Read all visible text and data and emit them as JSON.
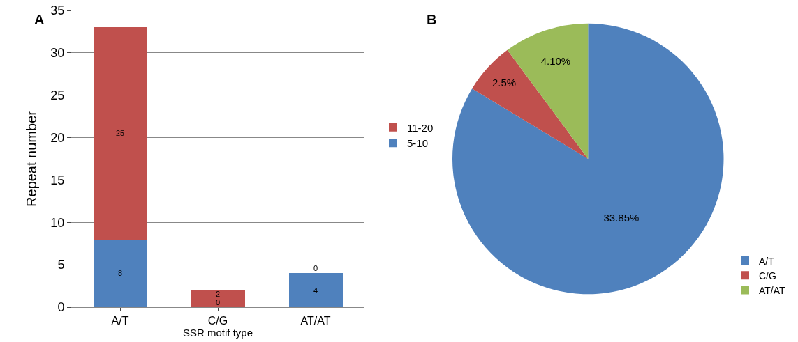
{
  "chart_data": [
    {
      "type": "bar",
      "title": "A",
      "categories": [
        "A/T",
        "C/G",
        "AT/AT"
      ],
      "stacked": true,
      "xlabel": "SSR motif type",
      "ylabel": "Repeat number",
      "ylim": [
        0,
        35
      ],
      "yticks": [
        0,
        5,
        10,
        15,
        20,
        25,
        30,
        35
      ],
      "grid": "y",
      "legend": "right",
      "data_labels": true,
      "series": [
        {
          "name": "5-10",
          "color": "#4f81bd",
          "values": [
            8,
            0,
            4
          ]
        },
        {
          "name": "11-20",
          "color": "#c0504d",
          "values": [
            25,
            2,
            0
          ]
        }
      ]
    },
    {
      "type": "pie",
      "title": "B",
      "categories": [
        "A/T",
        "C/G",
        "AT/AT"
      ],
      "values": [
        33.85,
        2.5,
        4.1
      ],
      "colors": [
        "#4f81bd",
        "#c0504d",
        "#9bbb59"
      ],
      "value_labels": [
        "33.85%",
        "2.5%",
        "4.10%"
      ],
      "legend": "bottom right"
    }
  ]
}
